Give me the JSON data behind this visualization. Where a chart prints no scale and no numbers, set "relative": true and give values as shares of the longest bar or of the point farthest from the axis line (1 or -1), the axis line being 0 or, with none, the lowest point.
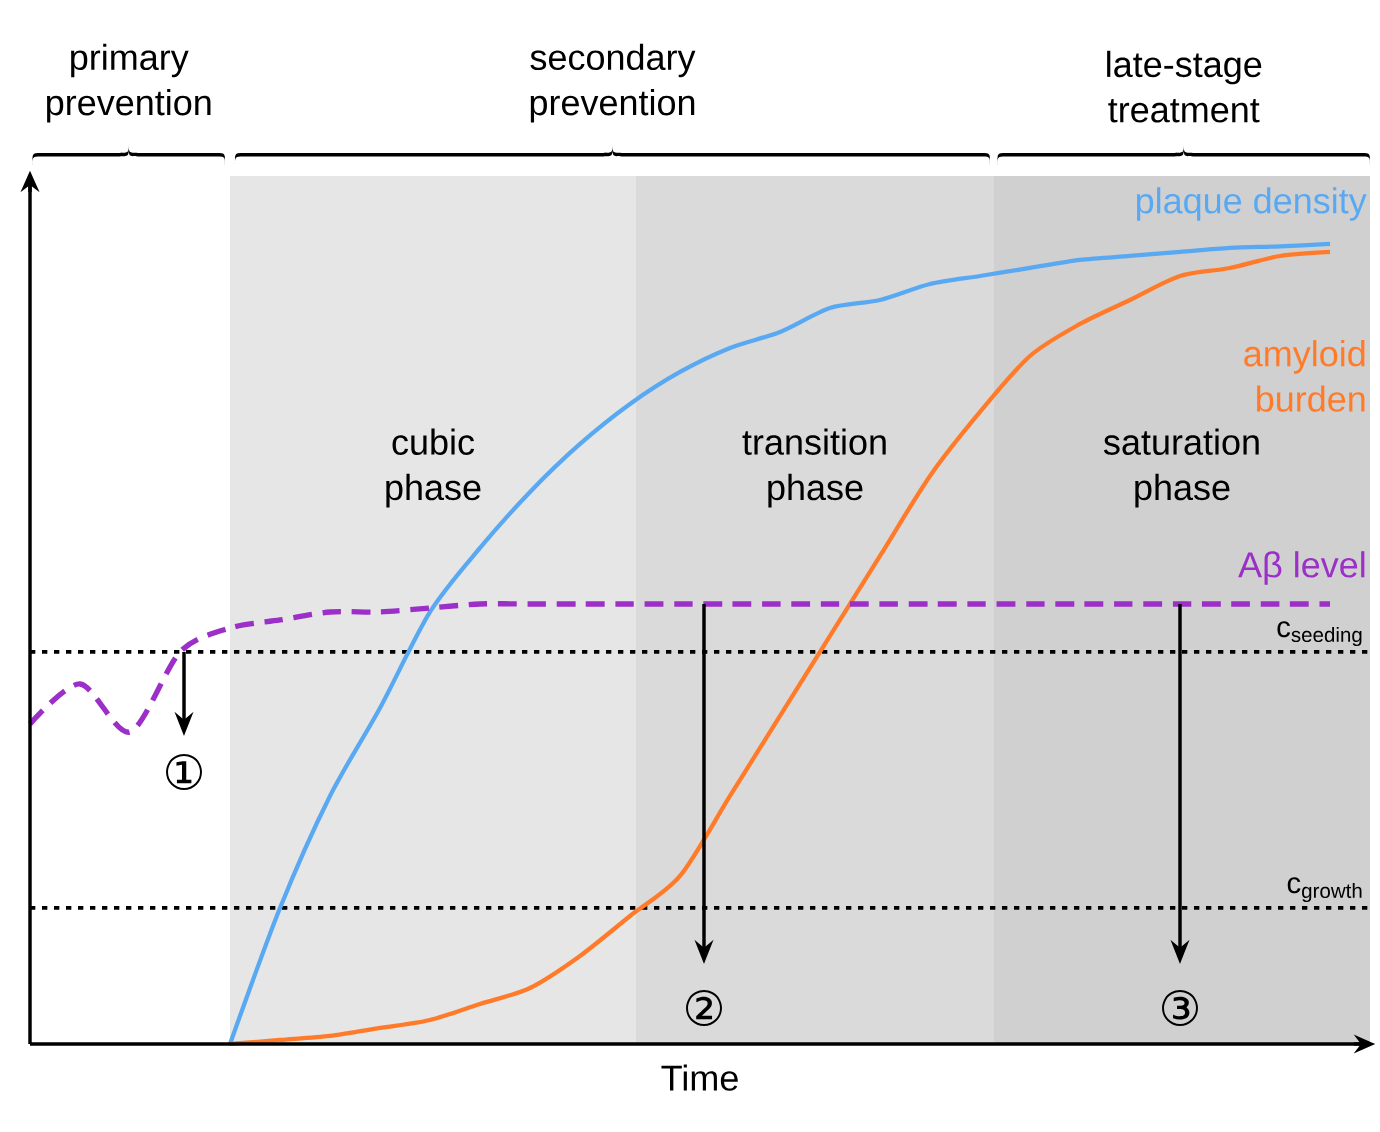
{
  "chart_data": {
    "type": "line",
    "relative": true,
    "xlabel": "Time",
    "marker": "none",
    "categories": [
      null,
      null,
      null,
      null,
      null,
      null,
      null,
      null,
      null,
      null,
      null,
      null,
      null,
      null,
      null,
      null,
      null,
      null,
      null,
      null,
      null,
      null,
      null,
      null,
      null,
      null,
      null
    ],
    "series": [
      {
        "name": "plaque density",
        "color": "#59a9f2",
        "values": [
          null,
          null,
          null,
          null,
          0,
          0.17,
          0.31,
          0.42,
          0.54,
          0.62,
          0.69,
          0.75,
          0.8,
          0.84,
          0.87,
          0.89,
          0.92,
          0.93,
          0.95,
          0.96,
          0.97,
          0.98,
          0.985,
          0.99,
          0.995,
          0.997,
          1
        ]
      },
      {
        "name": "amyloid burden",
        "color": "#ff7b2a",
        "values": [
          null,
          null,
          null,
          null,
          0,
          0.005,
          0.01,
          0.02,
          0.03,
          0.05,
          0.07,
          0.11,
          0.16,
          0.21,
          0.31,
          0.41,
          0.51,
          0.61,
          0.71,
          0.79,
          0.86,
          0.9,
          0.93,
          0.96,
          0.97,
          0.985,
          0.99
        ]
      },
      {
        "name": "Aβ level",
        "color": "#9b2fc8",
        "line_style": "dashed",
        "values": [
          0.4,
          0.45,
          0.39,
          0.49,
          0.52,
          0.53,
          0.54,
          0.54,
          0.545,
          0.55,
          0.55,
          0.55,
          0.55,
          0.55,
          0.55,
          0.55,
          0.55,
          0.55,
          0.55,
          0.55,
          0.55,
          0.55,
          0.55,
          0.55,
          0.55,
          0.55,
          0.55
        ]
      }
    ],
    "ref_lines": [
      {
        "axis": "y",
        "value": 0.49,
        "label": "c$_{seeding}$",
        "line_style": "dotted",
        "color": "#000000"
      },
      {
        "axis": "y",
        "value": 0.17,
        "label": "c$_{growth}$",
        "line_style": "dotted",
        "color": "#000000"
      }
    ],
    "annotations": [
      "primary prevention",
      "secondary prevention",
      "late-stage treatment",
      "cubic phase",
      "transition phase",
      "saturation phase",
      "①",
      "②",
      "③"
    ]
  }
}
